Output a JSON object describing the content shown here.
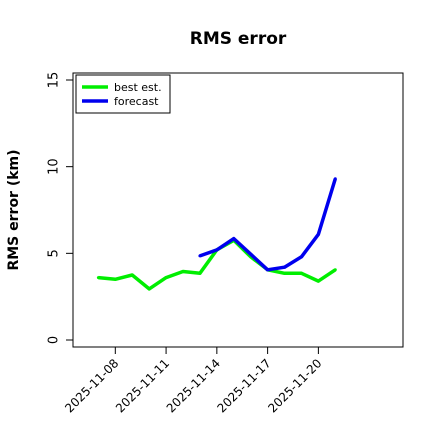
{
  "chart_data": {
    "type": "line",
    "title": "RMS error",
    "xlabel": "",
    "ylabel": "RMS error (km)",
    "ylim": [
      0,
      15
    ],
    "yticks": [
      0,
      5,
      10,
      15
    ],
    "xlim": [
      "2025-11-05T12:00",
      "2025-11-25"
    ],
    "xticks": [
      "2025-11-08",
      "2025-11-11",
      "2025-11-14",
      "2025-11-17",
      "2025-11-20"
    ],
    "grid": false,
    "legend_position": "top-left",
    "series": [
      {
        "name": "best est.",
        "color": "#00ee00",
        "points": [
          [
            "2025-11-07",
            3.6
          ],
          [
            "2025-11-08",
            3.5
          ],
          [
            "2025-11-09",
            3.75
          ],
          [
            "2025-11-10",
            2.95
          ],
          [
            "2025-11-11",
            3.6
          ],
          [
            "2025-11-12",
            3.95
          ],
          [
            "2025-11-13",
            3.85
          ],
          [
            "2025-11-14",
            5.2
          ],
          [
            "2025-11-15",
            5.75
          ],
          [
            "2025-11-16",
            4.8
          ],
          [
            "2025-11-17",
            4.05
          ],
          [
            "2025-11-18",
            3.85
          ],
          [
            "2025-11-19",
            3.85
          ],
          [
            "2025-11-20",
            3.4
          ],
          [
            "2025-11-21",
            4.05
          ]
        ]
      },
      {
        "name": "forecast",
        "color": "#0000ee",
        "points": [
          [
            "2025-11-13",
            4.85
          ],
          [
            "2025-11-14",
            5.2
          ],
          [
            "2025-11-15",
            5.85
          ],
          [
            "2025-11-16",
            4.95
          ],
          [
            "2025-11-17",
            4.05
          ],
          [
            "2025-11-18",
            4.2
          ],
          [
            "2025-11-19",
            4.8
          ],
          [
            "2025-11-20",
            6.1
          ],
          [
            "2025-11-21",
            9.3
          ]
        ]
      }
    ]
  }
}
